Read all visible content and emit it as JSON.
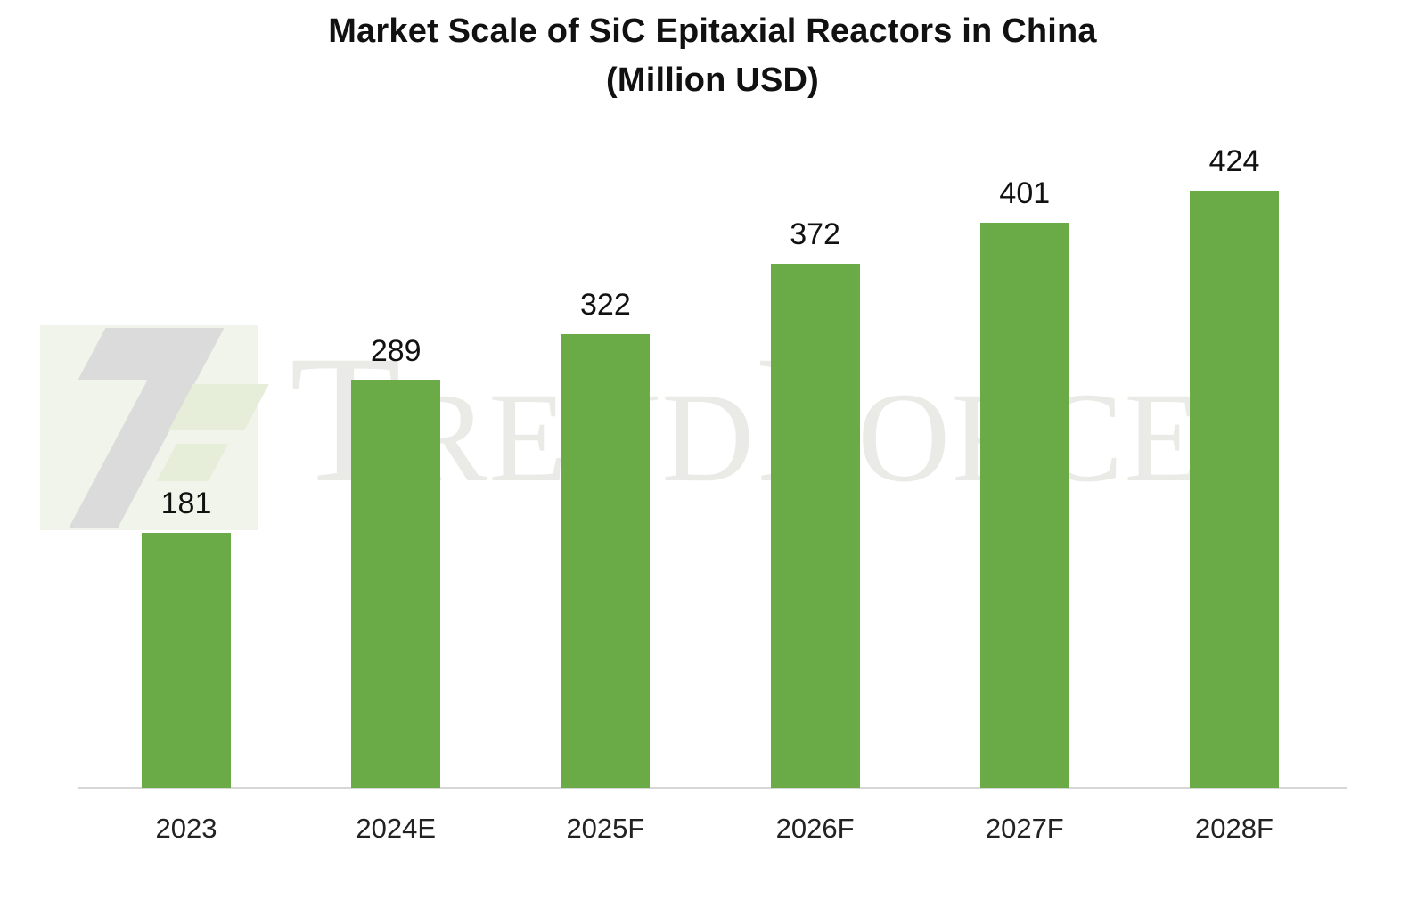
{
  "chart": {
    "title_line1": "Market Scale of SiC Epitaxial Reactors in China",
    "title_line2": "(Million USD)"
  },
  "watermark": {
    "text": "TrendForce"
  },
  "colors": {
    "bar": "#6BAB47",
    "watermark_text": "#EAEAE7",
    "axis_line": "#D6D6D6",
    "logo_bg": "#F0F4EB",
    "logo_gray": "#DBDBDB",
    "logo_green": "#E6EEDA"
  },
  "chart_data": {
    "type": "bar",
    "categories": [
      "2023",
      "2024E",
      "2025F",
      "2026F",
      "2027F",
      "2028F"
    ],
    "values": [
      181,
      289,
      322,
      372,
      401,
      424
    ],
    "title": "Market Scale of SiC Epitaxial Reactors in China (Million USD)",
    "xlabel": "",
    "ylabel": "",
    "ylim": [
      0,
      450
    ],
    "grid": false,
    "legend": false,
    "bar_color": "#6BAB47",
    "value_labels": true
  }
}
